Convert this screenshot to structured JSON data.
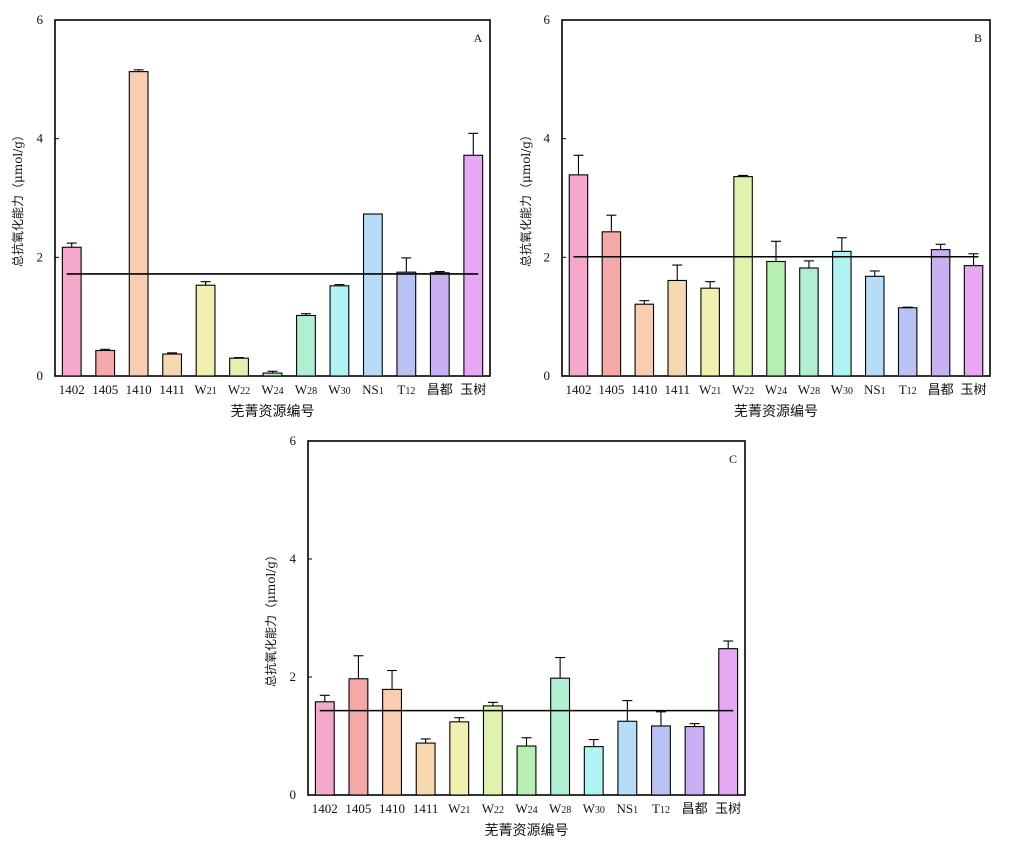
{
  "chart_data": [
    {
      "type": "bar",
      "panel": "A",
      "categories": [
        "1402",
        "1405",
        "1410",
        "1411",
        "W21",
        "W22",
        "W24",
        "W28",
        "W30",
        "NS1",
        "T12",
        "昌都",
        "玉树"
      ],
      "values": [
        2.17,
        0.43,
        5.13,
        0.37,
        1.53,
        0.3,
        0.05,
        1.02,
        1.52,
        2.73,
        1.75,
        1.74,
        3.72
      ],
      "errors": [
        0.07,
        0.02,
        0.03,
        0.02,
        0.06,
        0.01,
        0.03,
        0.03,
        0.02,
        0.0,
        0.24,
        0.02,
        0.37
      ],
      "mean_line": 1.72,
      "ylim": [
        0,
        6
      ],
      "yticks": [
        "0",
        "2",
        "4",
        "6"
      ],
      "xlabel": "芜菁资源编号",
      "ylabel": "总抗氧化能力（μmol/g）",
      "colors": [
        "#f5a8cb",
        "#f5a8a8",
        "#f8cdb0",
        "#f5d7b0",
        "#f2f0b0",
        "#e0f2b0",
        "#b6efb0",
        "#b0efd2",
        "#b0f3f3",
        "#b7dcf8",
        "#b8c3f3",
        "#caaef2",
        "#e7a8f3"
      ]
    },
    {
      "type": "bar",
      "panel": "B",
      "categories": [
        "1402",
        "1405",
        "1410",
        "1411",
        "W21",
        "W22",
        "W24",
        "W28",
        "W30",
        "NS1",
        "T12",
        "昌都",
        "玉树"
      ],
      "values": [
        3.39,
        2.43,
        1.21,
        1.61,
        1.48,
        3.36,
        1.93,
        1.82,
        2.1,
        1.68,
        1.15,
        2.13,
        1.86
      ],
      "errors": [
        0.33,
        0.28,
        0.06,
        0.26,
        0.11,
        0.02,
        0.34,
        0.12,
        0.23,
        0.09,
        0.01,
        0.09,
        0.2
      ],
      "mean_line": 2.01,
      "ylim": [
        0,
        6
      ],
      "yticks": [
        "0",
        "2",
        "4",
        "6"
      ],
      "xlabel": "芜菁资源编号",
      "ylabel": "总抗氧化能力（μmol/g）",
      "colors": [
        "#f5a8cb",
        "#f5a8a8",
        "#f8cdb0",
        "#f5d7b0",
        "#f2f0b0",
        "#e0f2b0",
        "#b6efb0",
        "#b0efd2",
        "#b0f3f3",
        "#b7dcf8",
        "#b8c3f3",
        "#caaef2",
        "#e7a8f3"
      ]
    },
    {
      "type": "bar",
      "panel": "C",
      "categories": [
        "1402",
        "1405",
        "1410",
        "1411",
        "W21",
        "W22",
        "W24",
        "W28",
        "W30",
        "NS1",
        "T12",
        "昌都",
        "玉树"
      ],
      "values": [
        1.58,
        1.97,
        1.79,
        0.88,
        1.24,
        1.51,
        0.83,
        1.98,
        0.82,
        1.25,
        1.17,
        1.16,
        2.48
      ],
      "errors": [
        0.11,
        0.39,
        0.32,
        0.07,
        0.07,
        0.06,
        0.14,
        0.35,
        0.12,
        0.35,
        0.24,
        0.05,
        0.13
      ],
      "mean_line": 1.43,
      "ylim": [
        0,
        6
      ],
      "yticks": [
        "0",
        "2",
        "4",
        "6"
      ],
      "xlabel": "芜菁资源编号",
      "ylabel": "总抗氧化能力（μmol/g）",
      "colors": [
        "#f5a8cb",
        "#f5a8a8",
        "#f8cdb0",
        "#f5d7b0",
        "#f2f0b0",
        "#e0f2b0",
        "#b6efb0",
        "#b0efd2",
        "#b0f3f3",
        "#b7dcf8",
        "#b8c3f3",
        "#caaef2",
        "#e7a8f3"
      ]
    }
  ]
}
